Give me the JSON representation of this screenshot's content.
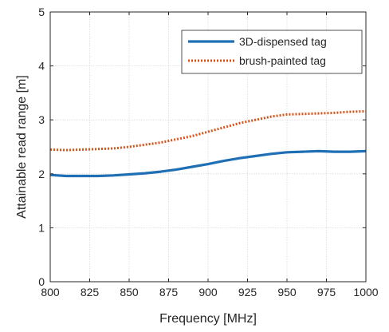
{
  "chart_data": {
    "type": "line",
    "title": "",
    "xlabel": "Frequency [MHz]",
    "ylabel": "Attainable read range [m]",
    "xlim": [
      800,
      1000
    ],
    "ylim": [
      0,
      5
    ],
    "xticks": [
      800,
      825,
      850,
      875,
      900,
      925,
      950,
      975,
      1000
    ],
    "yticks": [
      0,
      1,
      2,
      3,
      4,
      5
    ],
    "grid": true,
    "legend_position": "top-right",
    "series": [
      {
        "name": "3D-dispensed tag",
        "color": "#1f6fb5",
        "style": "solid",
        "x": [
          800,
          810,
          820,
          830,
          840,
          850,
          860,
          870,
          880,
          890,
          900,
          910,
          920,
          930,
          940,
          950,
          960,
          970,
          980,
          990,
          1000
        ],
        "y": [
          1.98,
          1.96,
          1.96,
          1.96,
          1.97,
          1.99,
          2.01,
          2.04,
          2.08,
          2.13,
          2.18,
          2.24,
          2.29,
          2.33,
          2.37,
          2.4,
          2.41,
          2.42,
          2.41,
          2.41,
          2.42
        ]
      },
      {
        "name": "brush-painted tag",
        "color": "#d95319",
        "style": "dotted",
        "x": [
          800,
          810,
          820,
          830,
          840,
          850,
          860,
          870,
          880,
          890,
          900,
          910,
          920,
          930,
          940,
          950,
          960,
          970,
          980,
          990,
          1000
        ],
        "y": [
          2.45,
          2.44,
          2.45,
          2.46,
          2.47,
          2.5,
          2.54,
          2.58,
          2.64,
          2.7,
          2.78,
          2.86,
          2.94,
          3.0,
          3.06,
          3.1,
          3.11,
          3.12,
          3.13,
          3.15,
          3.16
        ]
      }
    ]
  }
}
